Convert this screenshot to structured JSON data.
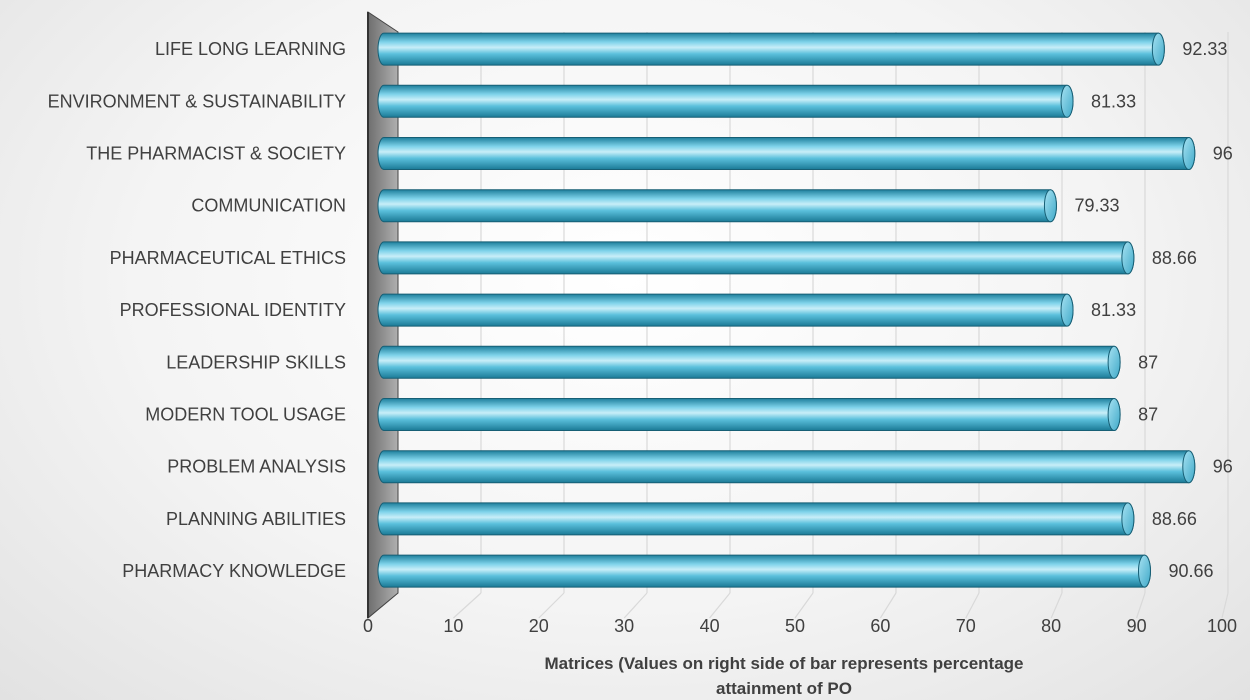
{
  "chart_data": {
    "type": "bar",
    "orientation": "horizontal",
    "style": "3d-cylinder",
    "categories": [
      "PHARMACY KNOWLEDGE",
      "PLANNING ABILITIES",
      "PROBLEM ANALYSIS",
      "MODERN TOOL USAGE",
      "LEADERSHIP SKILLS",
      "PROFESSIONAL IDENTITY",
      "PHARMACEUTICAL ETHICS",
      "COMMUNICATION",
      "THE PHARMACIST & SOCIETY",
      "ENVIRONMENT & SUSTAINABILITY",
      "LIFE LONG LEARNING"
    ],
    "values": [
      90.66,
      88.66,
      96,
      87,
      87,
      81.33,
      88.66,
      79.33,
      96,
      81.33,
      92.33
    ],
    "value_labels": [
      "90.66",
      "88.66",
      "96",
      "87",
      "87",
      "81.33",
      "88.66",
      "79.33",
      "96",
      "81.33",
      "92.33"
    ],
    "xlabel_lines": [
      "Matrices (Values on right side of bar represents percentage",
      "attainment of PO"
    ],
    "xlim": [
      0,
      100
    ],
    "xticks": [
      0,
      10,
      20,
      30,
      40,
      50,
      60,
      70,
      80,
      90,
      100
    ],
    "grid": true,
    "legend": "none",
    "colors": {
      "bar": "#4db8d6",
      "bar_light": "#c8eef8",
      "bar_dark": "#1b7a96",
      "wall": "#9a9a9a",
      "grid": "#d9d9d9",
      "text": "#404040"
    }
  }
}
